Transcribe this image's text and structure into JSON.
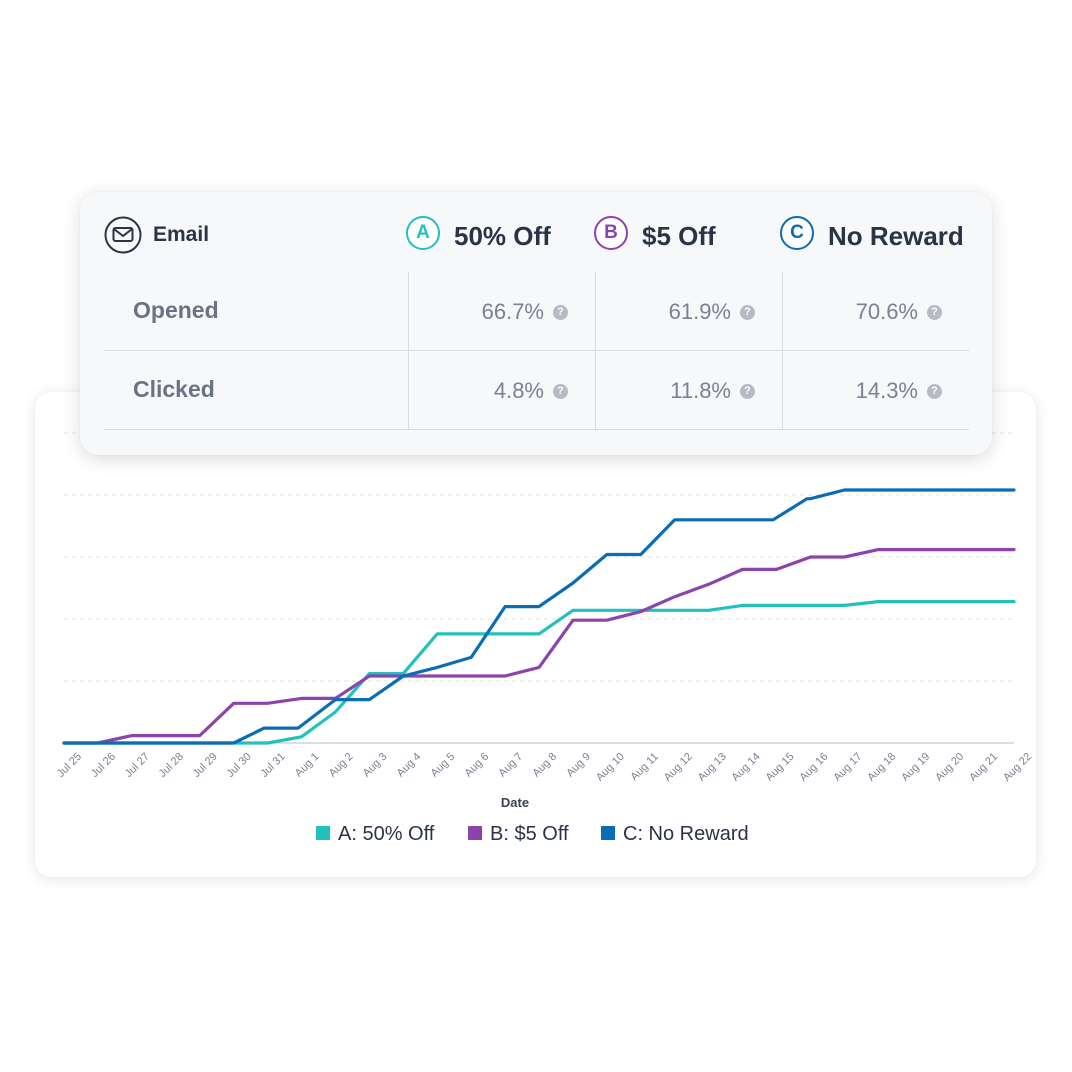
{
  "table": {
    "channel_label": "Email",
    "variants": [
      {
        "letter": "A",
        "name": "50% Off",
        "color": "#22c1bd"
      },
      {
        "letter": "B",
        "name": "$5 Off",
        "color": "#8c44ad"
      },
      {
        "letter": "C",
        "name": "No Reward",
        "color": "#0b6cb6"
      }
    ],
    "rows": [
      {
        "label": "Opened",
        "values": [
          "66.7%",
          "61.9%",
          "70.6%"
        ]
      },
      {
        "label": "Clicked",
        "values": [
          "4.8%",
          "11.8%",
          "14.3%"
        ]
      }
    ],
    "help_glyph": "?"
  },
  "chart_data": {
    "type": "line",
    "title": "",
    "xlabel": "Date",
    "ylabel": "",
    "categories": [
      "Jul 25",
      "Jul 26",
      "Jul 27",
      "Jul 28",
      "Jul 29",
      "Jul 30",
      "Jul 31",
      "Aug 1",
      "Aug 2",
      "Aug 3",
      "Aug 4",
      "Aug 5",
      "Aug 6",
      "Aug 7",
      "Aug 8",
      "Aug 9",
      "Aug 10",
      "Aug 11",
      "Aug 12",
      "Aug 13",
      "Aug 14",
      "Aug 15",
      "Aug 16",
      "Aug 17",
      "Aug 18",
      "Aug 19",
      "Aug 20",
      "Aug 21",
      "Aug 22"
    ],
    "ylim": [
      0,
      25
    ],
    "grid": true,
    "legend_position": "bottom",
    "series": [
      {
        "name": "A: 50% Off",
        "color": "#22c1bd",
        "x": [
          0,
          1,
          2,
          3,
          4,
          5,
          6,
          7,
          8,
          9,
          10,
          11,
          12,
          13,
          14,
          15,
          16,
          17,
          18,
          19,
          20,
          21,
          22,
          23,
          24,
          25,
          26,
          27,
          28
        ],
        "values": [
          0,
          0,
          0,
          0,
          0,
          0,
          0,
          0.5,
          2.5,
          5.6,
          5.6,
          8.8,
          8.8,
          8.8,
          8.8,
          10.7,
          10.7,
          10.7,
          10.7,
          10.7,
          11.1,
          11.1,
          11.1,
          11.1,
          11.4,
          11.4,
          11.4,
          11.4,
          11.4
        ]
      },
      {
        "name": "B: $5 Off",
        "color": "#8c44ad",
        "x": [
          0,
          1,
          2,
          3,
          4,
          5,
          6,
          7,
          8,
          9,
          10,
          11,
          12,
          13,
          14,
          15,
          16,
          17,
          18,
          19,
          20,
          21,
          22,
          23,
          24,
          25,
          26,
          27,
          28
        ],
        "values": [
          0,
          0,
          0.6,
          0.6,
          0.6,
          3.2,
          3.2,
          3.6,
          3.6,
          5.4,
          5.4,
          5.4,
          5.4,
          5.4,
          6.1,
          9.9,
          9.9,
          10.6,
          11.8,
          12.8,
          14.0,
          14.0,
          15.0,
          15.0,
          15.6,
          15.6,
          15.6,
          15.6,
          15.6
        ]
      },
      {
        "name": "C: No Reward",
        "color": "#0b6cb6",
        "x": [
          0,
          1,
          2,
          3,
          4,
          5,
          5.9,
          6.9,
          8,
          9,
          10,
          11,
          12,
          13,
          14,
          15,
          16,
          17,
          18,
          18.9,
          19.9,
          20.9,
          21.9,
          22,
          23,
          24,
          25,
          26,
          27,
          28
        ],
        "values": [
          0,
          0,
          0,
          0,
          0,
          0,
          1.2,
          1.2,
          3.5,
          3.5,
          5.4,
          6.1,
          6.9,
          11.0,
          11.0,
          12.9,
          15.2,
          15.2,
          18.0,
          18.0,
          18.0,
          18.0,
          19.7,
          19.7,
          20.4,
          20.4,
          20.4,
          20.4,
          20.4,
          20.4
        ]
      }
    ]
  }
}
